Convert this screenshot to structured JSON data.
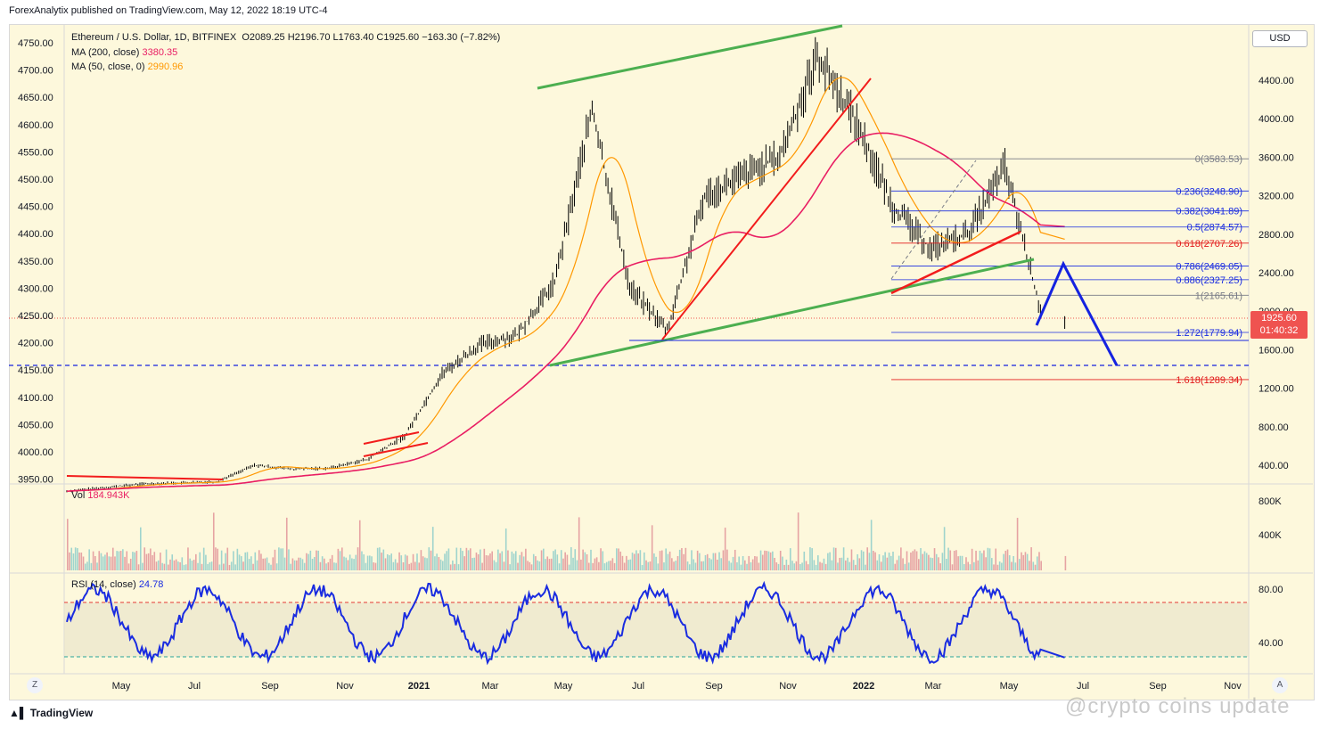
{
  "publisher_line": "ForexAnalytix published on TradingView.com, May 12, 2022 18:19 UTC-4",
  "legend": {
    "symbol_line": "Ethereum / U.S. Dollar, 1D, BITFINEX",
    "ohlc": "O2089.25  H2196.70  L1763.40  C1925.60  −163.30 (−7.82%)",
    "ma200_label": "MA (200, close)",
    "ma200_value": "3380.35",
    "ma50_label": "MA (50, close, 0)",
    "ma50_value": "2990.96",
    "vol_label": "Vol",
    "vol_value": "184.943K",
    "rsi_label": "RSI (14, close)",
    "rsi_value": "24.78"
  },
  "currency_button": "USD",
  "price_tag": {
    "price": "1925.60",
    "countdown": "01:40:32"
  },
  "zoom_button": "Z",
  "auto_button": "A",
  "brand": "TradingView",
  "watermark": "@crypto coins update",
  "colors": {
    "background": "#fdf8dc",
    "ma200": "#e91e63",
    "ma50": "#ff9800",
    "trend_green": "#4caf50",
    "trend_red": "#f21c1c",
    "projection_blue": "#1523e0",
    "rsi_line": "#1a2ce0",
    "fib_blue": "#1a2ce0",
    "fib_red": "#e21b1b"
  },
  "chart_data": {
    "type": "line",
    "title": "Ethereum / U.S. Dollar, 1D, BITFINEX",
    "left_axis_ticks": [
      "4750.00",
      "4700.00",
      "4650.00",
      "4600.00",
      "4550.00",
      "4500.00",
      "4450.00",
      "4400.00",
      "4350.00",
      "4300.00",
      "4250.00",
      "4200.00",
      "4150.00",
      "4100.00",
      "4050.00",
      "4000.00",
      "3950.00"
    ],
    "right_axis_ticks": [
      "4400.00",
      "4000.00",
      "3600.00",
      "3200.00",
      "2800.00",
      "2400.00",
      "2000.00",
      "1600.00",
      "1200.00",
      "800.00",
      "400.00"
    ],
    "x_ticks": [
      "May",
      "Jul",
      "Sep",
      "Nov",
      "2021",
      "Mar",
      "May",
      "Jul",
      "Sep",
      "Nov",
      "2022",
      "Mar",
      "May",
      "Jul",
      "Sep",
      "Nov"
    ],
    "price_series": {
      "name": "Ethereum / U.S. Dollar",
      "x": [
        "2020-03",
        "2020-05",
        "2020-07",
        "2020-08",
        "2020-09",
        "2020-10",
        "2020-11",
        "2020-12",
        "2021-01",
        "2021-02",
        "2021-03",
        "2021-04",
        "2021-05",
        "2021-06",
        "2021-07",
        "2021-08",
        "2021-09",
        "2021-10",
        "2021-11",
        "2021-12",
        "2022-01",
        "2022-02",
        "2022-03",
        "2022-04",
        "2022-05"
      ],
      "values": [
        130,
        205,
        230,
        400,
        360,
        370,
        460,
        700,
        1350,
        1650,
        1750,
        2300,
        4100,
        2250,
        1800,
        3200,
        3400,
        3600,
        4650,
        4000,
        3100,
        2650,
        2800,
        3500,
        1925
      ]
    },
    "fibonacci": [
      {
        "label": "0(3583.53)",
        "level": 3583.53
      },
      {
        "label": "0.236(3248.90)",
        "level": 3248.9
      },
      {
        "label": "0.382(3041.89)",
        "level": 3041.89
      },
      {
        "label": "0.5(2874.57)",
        "level": 2874.57
      },
      {
        "label": "0.618(2707.26)",
        "level": 2707.26
      },
      {
        "label": "0.786(2469.05)",
        "level": 2469.05
      },
      {
        "label": "0.886(2327.25)",
        "level": 2327.25
      },
      {
        "label": "1(2165.61)",
        "level": 2165.61
      },
      {
        "label": "1.272(1779.94)",
        "level": 1779.94
      },
      {
        "label": "1.618(1289.34)",
        "level": 1289.34
      }
    ],
    "volume_axis_ticks": [
      "800K",
      "400K"
    ],
    "rsi_axis_ticks": [
      "80.00",
      "40.00"
    ]
  }
}
